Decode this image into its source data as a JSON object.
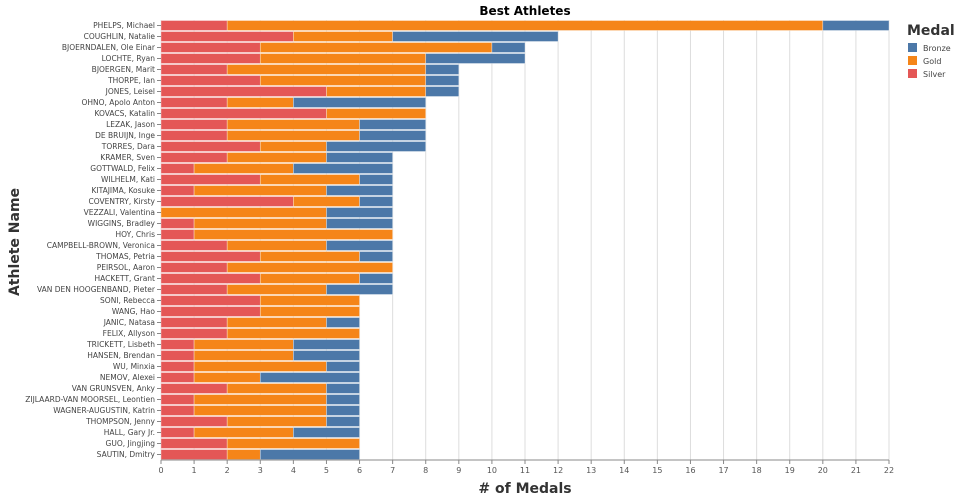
{
  "chart_data": {
    "type": "bar",
    "orientation": "horizontal",
    "stacked": true,
    "title": "Best Athletes",
    "xlabel": "# of Medals",
    "ylabel": "Athlete Name",
    "xlim": [
      0,
      22
    ],
    "xticks": [
      0,
      1,
      2,
      3,
      4,
      5,
      6,
      7,
      8,
      9,
      10,
      11,
      12,
      13,
      14,
      15,
      16,
      17,
      18,
      19,
      20,
      21,
      22
    ],
    "grid": true,
    "legend": {
      "title": "Medal",
      "placement": "top-right",
      "entries": [
        {
          "name": "Bronze",
          "color": "#4c78a8"
        },
        {
          "name": "Gold",
          "color": "#f58518"
        },
        {
          "name": "Silver",
          "color": "#e45756"
        }
      ]
    },
    "stack_order": [
      "Silver",
      "Gold",
      "Bronze"
    ],
    "categories": [
      "PHELPS, Michael",
      "COUGHLIN, Natalie",
      "BJOERNDALEN, Ole Einar",
      "LOCHTE, Ryan",
      "BJOERGEN, Marit",
      "THORPE, Ian",
      "JONES, Leisel",
      "OHNO, Apolo Anton",
      "KOVACS, Katalin",
      "LEZAK, Jason",
      "DE BRUIJN, Inge",
      "TORRES, Dara",
      "KRAMER, Sven",
      "GOTTWALD, Felix",
      "WILHELM, Kati",
      "KITAJIMA, Kosuke",
      "COVENTRY, Kirsty",
      "VEZZALI, Valentina",
      "WIGGINS, Bradley",
      "HOY, Chris",
      "CAMPBELL-BROWN, Veronica",
      "THOMAS, Petria",
      "PEIRSOL, Aaron",
      "HACKETT, Grant",
      "VAN DEN HOOGENBAND, Pieter",
      "SONI, Rebecca",
      "WANG, Hao",
      "JANIC, Natasa",
      "FELIX, Allyson",
      "TRICKETT, Lisbeth",
      "HANSEN, Brendan",
      "WU, Minxia",
      "NEMOV, Alexei",
      "VAN GRUNSVEN, Anky",
      "ZIJLAARD-VAN MOORSEL, Leontien",
      "WAGNER-AUGUSTIN, Katrin",
      "THOMPSON, Jenny",
      "HALL, Gary Jr.",
      "GUO, Jingjing",
      "SAUTIN, Dmitry"
    ],
    "series": [
      {
        "name": "Silver",
        "color": "#e45756",
        "values": [
          2,
          4,
          3,
          3,
          2,
          3,
          5,
          2,
          5,
          2,
          2,
          3,
          2,
          1,
          3,
          1,
          4,
          0,
          1,
          1,
          2,
          3,
          2,
          3,
          2,
          3,
          3,
          2,
          2,
          1,
          1,
          1,
          1,
          2,
          1,
          1,
          2,
          1,
          2,
          2
        ]
      },
      {
        "name": "Gold",
        "color": "#f58518",
        "values": [
          18,
          3,
          7,
          5,
          6,
          5,
          3,
          2,
          3,
          4,
          4,
          2,
          3,
          3,
          3,
          4,
          2,
          5,
          4,
          6,
          3,
          3,
          5,
          3,
          3,
          3,
          3,
          3,
          4,
          3,
          3,
          4,
          2,
          3,
          4,
          4,
          3,
          3,
          4,
          1
        ]
      },
      {
        "name": "Bronze",
        "color": "#4c78a8",
        "values": [
          2,
          5,
          1,
          3,
          1,
          1,
          1,
          4,
          0,
          2,
          2,
          3,
          2,
          3,
          1,
          2,
          1,
          2,
          2,
          0,
          2,
          1,
          0,
          1,
          2,
          0,
          0,
          1,
          0,
          2,
          2,
          1,
          3,
          1,
          1,
          1,
          1,
          2,
          0,
          3
        ]
      }
    ]
  }
}
